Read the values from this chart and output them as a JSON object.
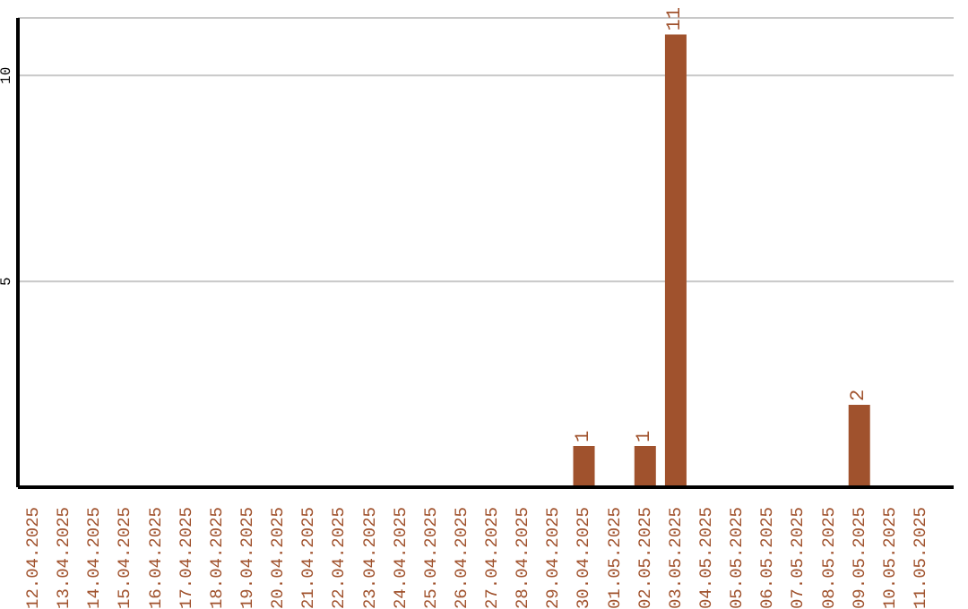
{
  "chart_data": {
    "type": "bar",
    "categories": [
      "12.04.2025",
      "13.04.2025",
      "14.04.2025",
      "15.04.2025",
      "16.04.2025",
      "17.04.2025",
      "18.04.2025",
      "19.04.2025",
      "20.04.2025",
      "21.04.2025",
      "22.04.2025",
      "23.04.2025",
      "24.04.2025",
      "25.04.2025",
      "26.04.2025",
      "27.04.2025",
      "28.04.2025",
      "29.04.2025",
      "30.04.2025",
      "01.05.2025",
      "02.05.2025",
      "03.05.2025",
      "04.05.2025",
      "05.05.2025",
      "06.05.2025",
      "07.05.2025",
      "08.05.2025",
      "09.05.2025",
      "10.05.2025",
      "11.05.2025"
    ],
    "values": [
      0,
      0,
      0,
      0,
      0,
      0,
      0,
      0,
      0,
      0,
      0,
      0,
      0,
      0,
      0,
      0,
      0,
      0,
      1,
      0,
      1,
      11,
      0,
      0,
      0,
      0,
      0,
      2,
      0,
      0
    ],
    "value_labels": [
      null,
      null,
      null,
      null,
      null,
      null,
      null,
      null,
      null,
      null,
      null,
      null,
      null,
      null,
      null,
      null,
      null,
      null,
      "1",
      null,
      "1",
      "11",
      null,
      null,
      null,
      null,
      null,
      "2",
      null,
      null
    ],
    "color": "#a0522d",
    "ylim": [
      0,
      11.4
    ],
    "yticks": [
      5,
      10
    ],
    "grid": "y"
  }
}
